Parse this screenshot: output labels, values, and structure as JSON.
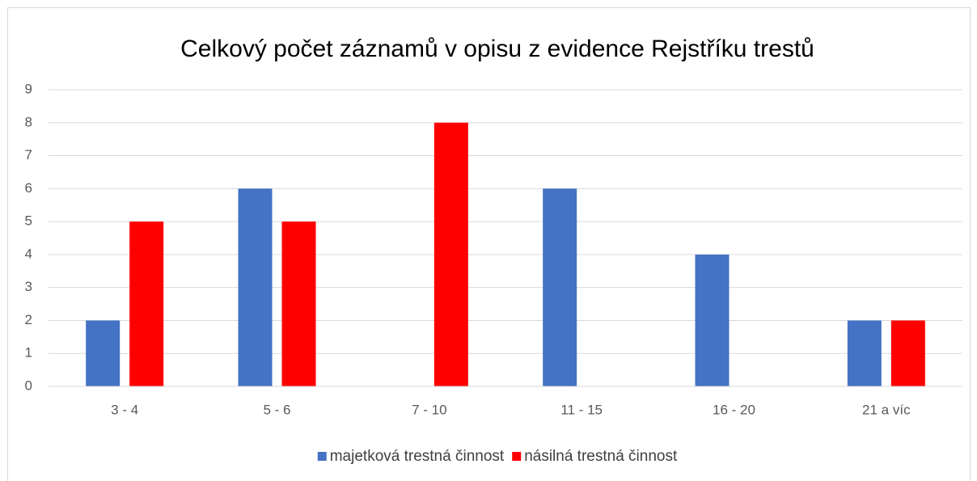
{
  "chart_data": {
    "type": "bar",
    "title": "Celkový počet záznamů v opisu z evidence Rejstříku trestů",
    "categories": [
      "3 - 4",
      "5 - 6",
      "7 - 10",
      "11 - 15",
      "16 - 20",
      "21 a víc"
    ],
    "series": [
      {
        "name": "majetková trestná činnost",
        "color": "#4472c4",
        "values": [
          2,
          6,
          0,
          6,
          4,
          2
        ]
      },
      {
        "name": "násilná trestná činnost",
        "color": "#ff0000",
        "values": [
          5,
          5,
          8,
          0,
          0,
          2
        ]
      }
    ],
    "ylim": [
      0,
      9
    ],
    "yticks": [
      0,
      1,
      2,
      3,
      4,
      5,
      6,
      7,
      8,
      9
    ],
    "grid": true,
    "legend": "bottom"
  }
}
